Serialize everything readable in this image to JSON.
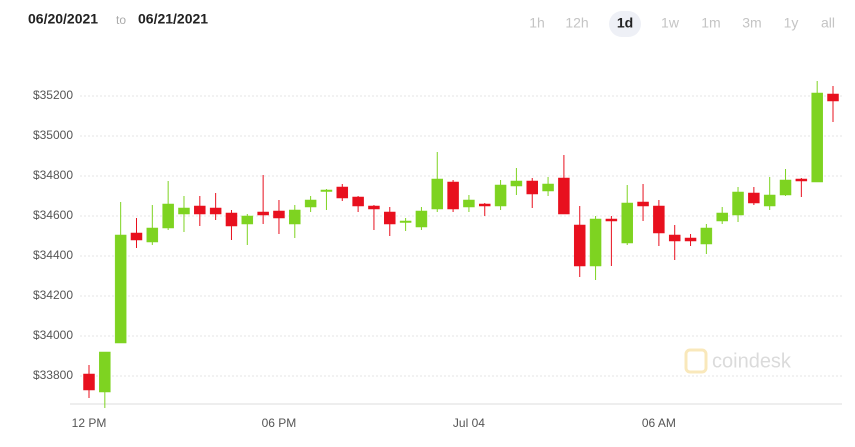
{
  "chart_data": {
    "type": "candlestick",
    "date_from": "06/20/2021",
    "date_sep": "to",
    "date_to": "06/21/2021",
    "ranges": [
      "1h",
      "12h",
      "1d",
      "1w",
      "1m",
      "3m",
      "1y",
      "all"
    ],
    "selected_range": "1d",
    "watermark": "coindesk",
    "categories": [
      "12 PM",
      null,
      null,
      null,
      null,
      null,
      null,
      null,
      null,
      null,
      null,
      null,
      "06 PM",
      null,
      null,
      null,
      null,
      null,
      null,
      null,
      null,
      null,
      null,
      null,
      "Jul 04",
      null,
      null,
      null,
      null,
      null,
      null,
      null,
      null,
      null,
      null,
      null,
      "06 AM",
      null,
      null,
      null,
      null,
      null,
      null,
      null,
      null,
      null,
      null,
      null
    ],
    "open": [
      33810,
      33720,
      33965,
      34515,
      34470,
      34540,
      34610,
      34650,
      34640,
      34615,
      34560,
      34620,
      34625,
      34560,
      34645,
      34725,
      34745,
      34695,
      34650,
      34620,
      34570,
      34545,
      34635,
      34770,
      34645,
      34660,
      34650,
      34750,
      34775,
      34725,
      34790,
      34555,
      34350,
      34585,
      34465,
      34670,
      34650,
      34505,
      34490,
      34460,
      34575,
      34605,
      34715,
      34650,
      34705,
      34785,
      34770,
      35210
    ],
    "high": [
      33855,
      33920,
      34670,
      34590,
      34655,
      34775,
      34700,
      34700,
      34715,
      34630,
      34610,
      34805,
      34680,
      34655,
      34700,
      34735,
      34760,
      34700,
      34655,
      34645,
      34590,
      34645,
      34920,
      34780,
      34705,
      34665,
      34780,
      34840,
      34790,
      34795,
      34905,
      34650,
      34600,
      34600,
      34755,
      34760,
      34680,
      34555,
      34510,
      34560,
      34645,
      34745,
      34745,
      34795,
      34835,
      34790,
      35275,
      35250
    ],
    "low": [
      33690,
      33640,
      33965,
      34440,
      34455,
      34530,
      34520,
      34550,
      34580,
      34480,
      34455,
      34560,
      34510,
      34490,
      34620,
      34630,
      34675,
      34620,
      34530,
      34500,
      34525,
      34530,
      34620,
      34620,
      34620,
      34600,
      34630,
      34705,
      34640,
      34700,
      34610,
      34295,
      34280,
      34350,
      34455,
      34575,
      34450,
      34380,
      34450,
      34410,
      34560,
      34570,
      34655,
      34630,
      34700,
      34695,
      34770,
      35070
    ],
    "close": [
      33730,
      33920,
      34505,
      34480,
      34540,
      34660,
      34640,
      34610,
      34610,
      34550,
      34600,
      34605,
      34590,
      34630,
      34680,
      34730,
      34690,
      34650,
      34635,
      34560,
      34575,
      34625,
      34785,
      34635,
      34680,
      34650,
      34755,
      34775,
      34710,
      34760,
      34610,
      34350,
      34585,
      34575,
      34665,
      34650,
      34515,
      34475,
      34475,
      34540,
      34615,
      34720,
      34665,
      34705,
      34780,
      34775,
      35215,
      35175
    ],
    "up_color": "#7ed321",
    "down_color": "#e8101e",
    "ylim": [
      33680,
      35380
    ],
    "yticks": [
      {
        "value": 33800,
        "label": "$33800"
      },
      {
        "value": 34000,
        "label": "$34000"
      },
      {
        "value": 34200,
        "label": "$34200"
      },
      {
        "value": 34400,
        "label": "$34400"
      },
      {
        "value": 34600,
        "label": "$34600"
      },
      {
        "value": 34800,
        "label": "$34800"
      },
      {
        "value": 35000,
        "label": "$35000"
      },
      {
        "value": 35200,
        "label": "$35200"
      }
    ],
    "grid": true
  }
}
